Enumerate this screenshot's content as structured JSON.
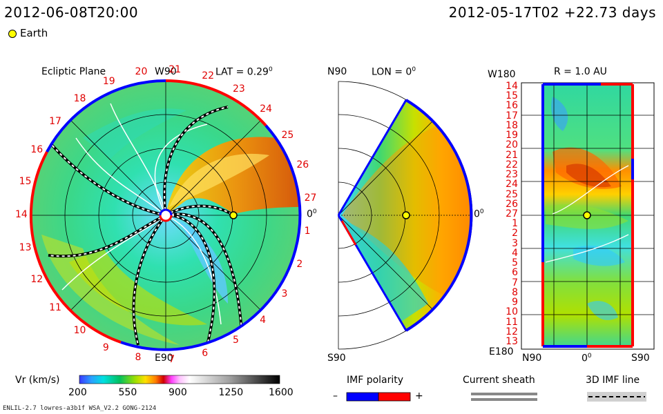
{
  "header": {
    "left_time": "2012-06-08T20:00",
    "right_time": "2012-05-17T02 +22.73 days"
  },
  "legend": {
    "earth_label": "Earth"
  },
  "ecliptic": {
    "title": "Ecliptic Plane",
    "lat_label": "LAT = 0.29",
    "lat_sup": "0",
    "top_label": "W90",
    "bottom_label": "E90",
    "right_label": "0",
    "right_sup": "0",
    "cr_numbers": [
      "14",
      "15",
      "16",
      "17",
      "18",
      "19",
      "20",
      "21",
      "22",
      "23",
      "24",
      "25",
      "26",
      "27",
      "1",
      "2",
      "3",
      "4",
      "5",
      "6",
      "7",
      "8",
      "9",
      "10",
      "11",
      "12",
      "13"
    ]
  },
  "meridional": {
    "top_label": "N90",
    "lon_label": "LON = 0",
    "lon_sup": "0",
    "bottom_label": "S90",
    "right_label": "0",
    "right_sup": "0"
  },
  "radial": {
    "top_label": "W180",
    "r_label": "R = 1.0 AU",
    "bottom_label": "E180",
    "x_left": "N90",
    "x_mid": "0",
    "x_mid_sup": "0",
    "x_right": "S90",
    "y_ticks": [
      "14",
      "15",
      "16",
      "17",
      "18",
      "19",
      "20",
      "21",
      "22",
      "23",
      "24",
      "25",
      "26",
      "27",
      "1",
      "2",
      "3",
      "4",
      "5",
      "6",
      "7",
      "8",
      "9",
      "10",
      "11",
      "12",
      "13"
    ]
  },
  "colorbar": {
    "label": "Vr (km/s)",
    "ticks": [
      "200",
      "550",
      "900",
      "1250",
      "1600"
    ]
  },
  "imf_polarity": {
    "title": "IMF polarity",
    "minus": "–",
    "plus": "+"
  },
  "current_sheath": {
    "title": "Current sheath"
  },
  "imf_line": {
    "title": "3D IMF line"
  },
  "footer": {
    "model": "ENLIL-2.7 lowres-a3b1f WSA_V2.2 GONG-2124"
  },
  "colors": {
    "positive": "#ff0000",
    "negative": "#0000ff",
    "earth": "#ffff00"
  }
}
